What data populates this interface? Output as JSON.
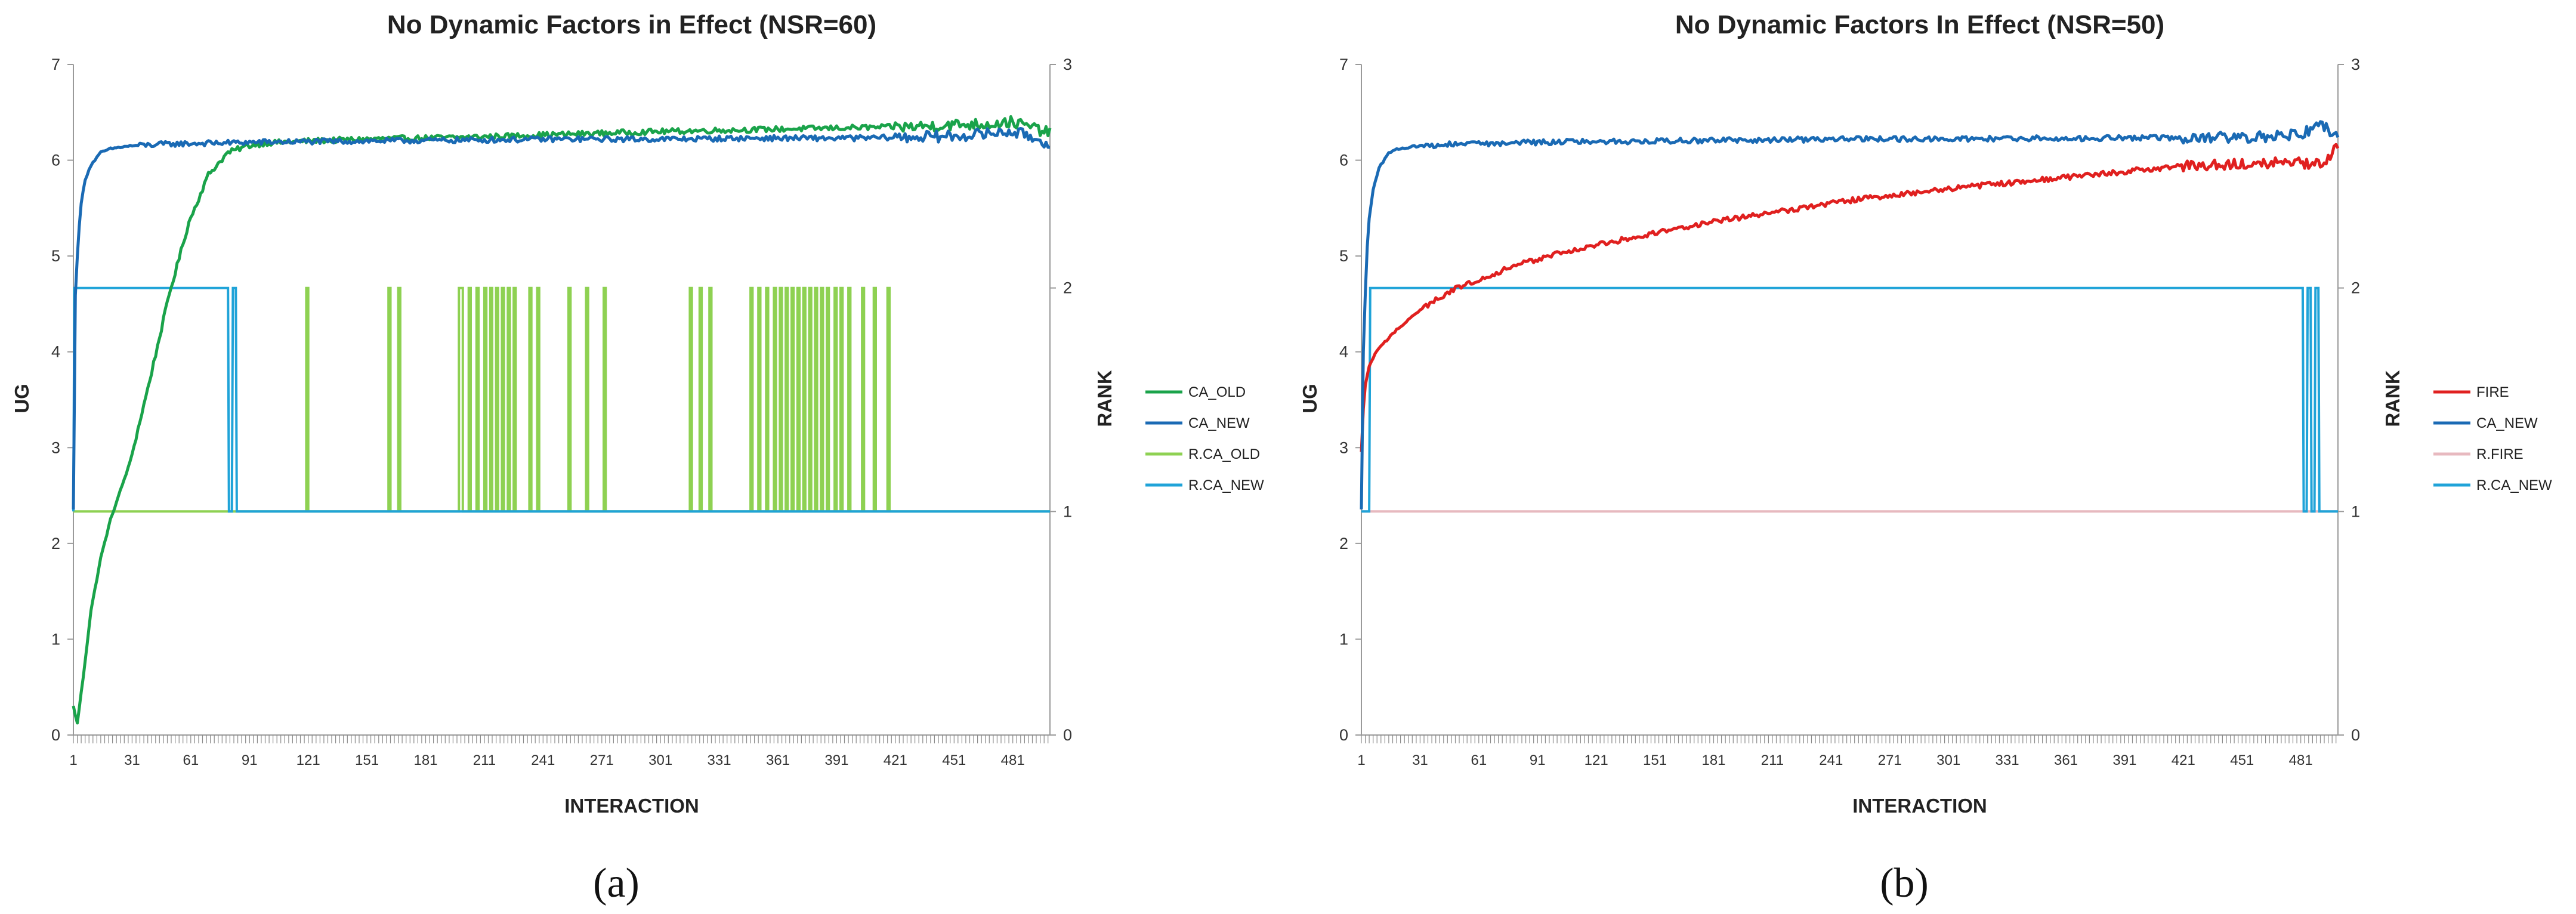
{
  "chart_data": [
    {
      "type": "line",
      "panel_label": "(a)",
      "title": "No Dynamic Factors in Effect (NSR=60)",
      "xlabel": "INTERACTION",
      "ylabel": "UG",
      "y2label": "RANK",
      "xlim": [
        1,
        500
      ],
      "ylim": [
        0,
        7
      ],
      "y2lim": [
        0,
        3
      ],
      "xticks": [
        1,
        31,
        61,
        91,
        121,
        151,
        181,
        211,
        241,
        271,
        301,
        331,
        361,
        391,
        421,
        451,
        481
      ],
      "yticks": [
        0,
        1,
        2,
        3,
        4,
        5,
        6,
        7
      ],
      "y2ticks": [
        0,
        1,
        2,
        3
      ],
      "grid": false,
      "legend_position": "right",
      "series": [
        {
          "name": "CA_OLD",
          "axis": "left",
          "color": "#1aa34a",
          "x": [
            1,
            3,
            6,
            10,
            15,
            20,
            30,
            40,
            50,
            60,
            70,
            80,
            90,
            100,
            120,
            150,
            200,
            250,
            300,
            350,
            400,
            430,
            450,
            470,
            480,
            490,
            500
          ],
          "y": [
            0.3,
            0.12,
            0.6,
            1.3,
            1.85,
            2.25,
            2.85,
            3.7,
            4.6,
            5.35,
            5.85,
            6.08,
            6.15,
            6.18,
            6.2,
            6.22,
            6.24,
            6.27,
            6.3,
            6.32,
            6.34,
            6.35,
            6.37,
            6.38,
            6.4,
            6.35,
            6.28
          ]
        },
        {
          "name": "CA_NEW",
          "axis": "left",
          "color": "#1a6ab4",
          "x": [
            1,
            2,
            3,
            4,
            5,
            7,
            10,
            15,
            20,
            30,
            50,
            100,
            150,
            200,
            250,
            300,
            350,
            400,
            450,
            470,
            480,
            490,
            495,
            500
          ],
          "y": [
            2.35,
            4.6,
            5.0,
            5.3,
            5.55,
            5.8,
            5.95,
            6.08,
            6.12,
            6.15,
            6.17,
            6.19,
            6.2,
            6.21,
            6.22,
            6.22,
            6.23,
            6.23,
            6.25,
            6.28,
            6.3,
            6.25,
            6.2,
            6.18
          ]
        },
        {
          "name": "R.CA_OLD",
          "axis": "right",
          "color": "#8ed152",
          "baseline": 1,
          "spikes": [
            [
              120,
              121
            ],
            [
              162,
              163
            ],
            [
              167,
              168
            ],
            [
              198,
              200
            ],
            [
              203,
              204
            ],
            [
              207,
              208
            ],
            [
              211,
              212
            ],
            [
              214,
              215
            ],
            [
              217,
              218
            ],
            [
              220,
              221
            ],
            [
              223,
              224
            ],
            [
              226,
              227
            ],
            [
              234,
              235
            ],
            [
              238,
              239
            ],
            [
              254,
              255
            ],
            [
              263,
              264
            ],
            [
              272,
              273
            ],
            [
              316,
              317
            ],
            [
              321,
              322
            ],
            [
              326,
              327
            ],
            [
              347,
              348
            ],
            [
              351,
              352
            ],
            [
              355,
              356
            ],
            [
              359,
              360
            ],
            [
              362,
              363
            ],
            [
              365,
              366
            ],
            [
              368,
              369
            ],
            [
              371,
              372
            ],
            [
              374,
              375
            ],
            [
              377,
              378
            ],
            [
              380,
              381
            ],
            [
              383,
              384
            ],
            [
              386,
              387
            ],
            [
              390,
              391
            ],
            [
              393,
              394
            ],
            [
              397,
              398
            ],
            [
              404,
              405
            ],
            [
              410,
              411
            ],
            [
              417,
              418
            ]
          ],
          "spike_value": 2
        },
        {
          "name": "R.CA_NEW",
          "axis": "right",
          "color": "#1fa3d8",
          "x": [
            1,
            1.5,
            80,
            80.5,
            82,
            82.5,
            84,
            84.5,
            500
          ],
          "y": [
            1,
            2,
            2,
            1,
            1,
            2,
            2,
            1,
            1
          ]
        }
      ]
    },
    {
      "type": "line",
      "panel_label": "(b)",
      "title": "No Dynamic Factors In Effect (NSR=50)",
      "xlabel": "INTERACTION",
      "ylabel": "UG",
      "y2label": "RANK",
      "xlim": [
        1,
        500
      ],
      "ylim": [
        0,
        7
      ],
      "y2lim": [
        0,
        3
      ],
      "xticks": [
        1,
        31,
        61,
        91,
        121,
        151,
        181,
        211,
        241,
        271,
        301,
        331,
        361,
        391,
        421,
        451,
        481
      ],
      "yticks": [
        0,
        1,
        2,
        3,
        4,
        5,
        6,
        7
      ],
      "y2ticks": [
        0,
        1,
        2,
        3
      ],
      "grid": false,
      "legend_position": "right",
      "series": [
        {
          "name": "FIRE",
          "axis": "left",
          "color": "#e0201f",
          "x": [
            1,
            2,
            3,
            5,
            8,
            12,
            20,
            30,
            45,
            60,
            80,
            100,
            130,
            160,
            200,
            250,
            300,
            350,
            400,
            430,
            460,
            480,
            490,
            495,
            500
          ],
          "y": [
            2.95,
            3.4,
            3.65,
            3.85,
            3.98,
            4.08,
            4.25,
            4.42,
            4.62,
            4.75,
            4.9,
            5.02,
            5.15,
            5.28,
            5.42,
            5.58,
            5.7,
            5.8,
            5.9,
            5.95,
            5.98,
            5.97,
            5.95,
            6.0,
            6.18
          ]
        },
        {
          "name": "CA_NEW",
          "axis": "left",
          "color": "#1a6ab4",
          "x": [
            1,
            2,
            3,
            4,
            5,
            7,
            10,
            15,
            20,
            30,
            50,
            100,
            150,
            200,
            250,
            300,
            350,
            400,
            450,
            470,
            480,
            485,
            490,
            495,
            500
          ],
          "y": [
            2.35,
            4.0,
            4.6,
            5.1,
            5.4,
            5.7,
            5.92,
            6.08,
            6.12,
            6.15,
            6.17,
            6.19,
            6.2,
            6.21,
            6.22,
            6.22,
            6.23,
            6.23,
            6.24,
            6.25,
            6.28,
            6.3,
            6.4,
            6.32,
            6.28
          ]
        },
        {
          "name": "R.FIRE",
          "axis": "right",
          "color": "#e7b9bf",
          "x": [
            1,
            500
          ],
          "y": [
            1,
            1
          ]
        },
        {
          "name": "R.CA_NEW",
          "axis": "right",
          "color": "#1fa3d8",
          "x": [
            1,
            2,
            2.5,
            5,
            5.5,
            482,
            482.5,
            484,
            484.5,
            486,
            486.5,
            488,
            488.5,
            490,
            490.5,
            492,
            492.5,
            500
          ],
          "y": [
            1,
            1,
            1,
            1,
            2,
            2,
            1,
            1,
            2,
            2,
            1,
            1,
            2,
            2,
            1,
            1,
            1,
            1
          ]
        }
      ]
    }
  ]
}
